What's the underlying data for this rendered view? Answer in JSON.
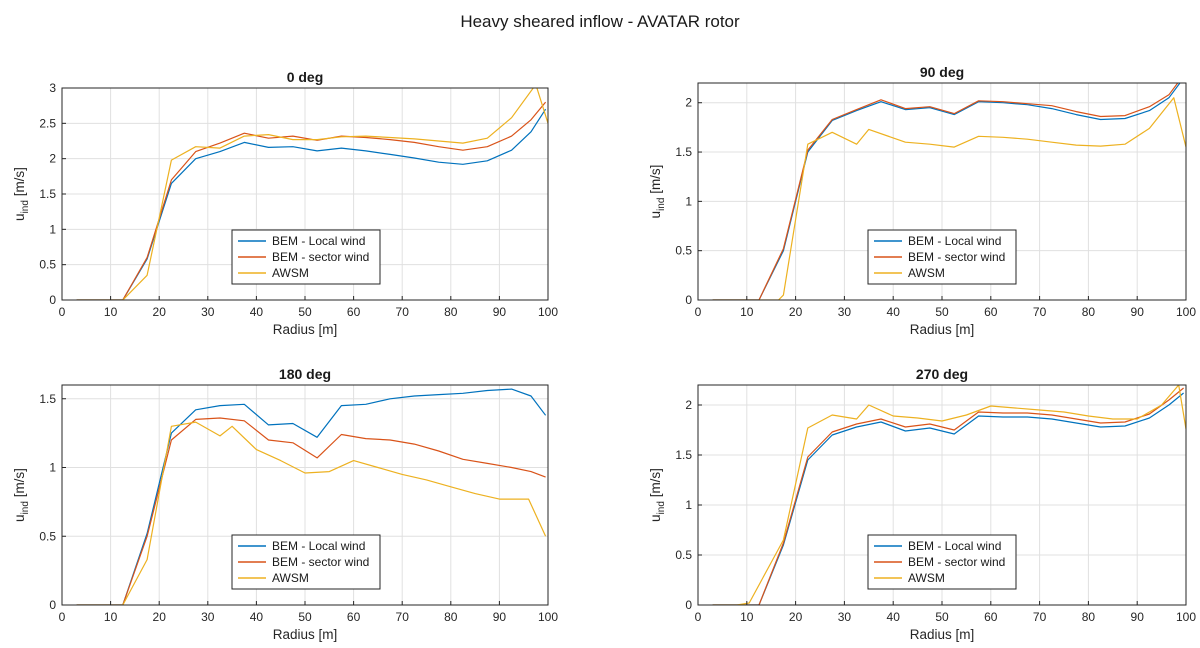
{
  "figure_title": "Heavy sheared inflow - AVATAR rotor",
  "colors": {
    "bem_local": "#0072BD",
    "bem_sector": "#D95319",
    "awsm": "#EDB120",
    "grid": "#e0e0e0",
    "axes": "#262626"
  },
  "chart_data": [
    {
      "type": "line",
      "title": "0 deg",
      "xlabel": "Radius [m]",
      "ylabel_main": "u",
      "ylabel_sub": "ind",
      "ylabel_unit": " [m/s]",
      "xlim": [
        0,
        100
      ],
      "ylim": [
        0,
        3
      ],
      "xticks": [
        0,
        10,
        20,
        30,
        40,
        50,
        60,
        70,
        80,
        90,
        100
      ],
      "yticks": [
        0,
        0.5,
        1,
        1.5,
        2,
        2.5,
        3
      ],
      "ytick_labels": [
        "0",
        "0.5",
        "1",
        "1.5",
        "2",
        "2.5",
        "3"
      ],
      "grid": true,
      "legend_position": "lower-middle",
      "series": [
        {
          "name": "BEM - Local wind",
          "color": "#0072BD",
          "x": [
            3,
            8,
            12.5,
            17.5,
            22.5,
            27.5,
            32.5,
            37.5,
            42.5,
            47.5,
            52.5,
            57.5,
            62.5,
            67.5,
            72.5,
            77.5,
            82.5,
            87.5,
            92.5,
            96.5,
            99.5
          ],
          "y": [
            0,
            0,
            0,
            0.58,
            1.65,
            2.0,
            2.1,
            2.23,
            2.16,
            2.17,
            2.11,
            2.15,
            2.11,
            2.06,
            2.01,
            1.95,
            1.92,
            1.97,
            2.12,
            2.38,
            2.7
          ]
        },
        {
          "name": "BEM - sector wind",
          "color": "#D95319",
          "x": [
            3,
            8,
            12.5,
            17.5,
            22.5,
            27.5,
            32.5,
            37.5,
            42.5,
            47.5,
            52.5,
            57.5,
            62.5,
            67.5,
            72.5,
            77.5,
            82.5,
            87.5,
            92.5,
            96.5,
            99.5
          ],
          "y": [
            0,
            0,
            0,
            0.6,
            1.7,
            2.1,
            2.22,
            2.36,
            2.29,
            2.32,
            2.26,
            2.32,
            2.3,
            2.27,
            2.23,
            2.17,
            2.12,
            2.17,
            2.32,
            2.55,
            2.8
          ]
        },
        {
          "name": "AWSM",
          "color": "#EDB120",
          "x": [
            3,
            8,
            12.5,
            17.5,
            22.5,
            27.5,
            32.5,
            37.5,
            42.5,
            47.5,
            52.5,
            57.5,
            62.5,
            67.5,
            72.5,
            77.5,
            82.5,
            87.5,
            92.5,
            97.5,
            100
          ],
          "y": [
            0,
            0,
            0,
            0.35,
            1.98,
            2.17,
            2.15,
            2.32,
            2.34,
            2.27,
            2.27,
            2.31,
            2.32,
            2.3,
            2.28,
            2.25,
            2.22,
            2.29,
            2.58,
            3.05,
            2.5
          ]
        }
      ]
    },
    {
      "type": "line",
      "title": "90 deg",
      "xlabel": "Radius [m]",
      "ylabel_main": "u",
      "ylabel_sub": "ind",
      "ylabel_unit": " [m/s]",
      "xlim": [
        0,
        100
      ],
      "ylim": [
        0,
        2.2
      ],
      "xticks": [
        0,
        10,
        20,
        30,
        40,
        50,
        60,
        70,
        80,
        90,
        100
      ],
      "yticks": [
        0,
        0.5,
        1,
        1.5,
        2
      ],
      "ytick_labels": [
        "0",
        "0.5",
        "1",
        "1.5",
        "2"
      ],
      "grid": true,
      "legend_position": "lower-middle",
      "series": [
        {
          "name": "BEM - Local wind",
          "color": "#0072BD",
          "x": [
            3,
            8,
            12.5,
            17.5,
            22.5,
            27.5,
            32.5,
            37.5,
            42.5,
            47.5,
            52.5,
            57.5,
            62.5,
            67.5,
            72.5,
            77.5,
            82.5,
            87.5,
            92.5,
            96.5,
            99.5
          ],
          "y": [
            0,
            0,
            0,
            0.5,
            1.5,
            1.82,
            1.92,
            2.01,
            1.93,
            1.95,
            1.88,
            2.01,
            2.0,
            1.98,
            1.94,
            1.88,
            1.83,
            1.84,
            1.92,
            2.05,
            2.25
          ]
        },
        {
          "name": "BEM - sector wind",
          "color": "#D95319",
          "x": [
            3,
            8,
            12.5,
            17.5,
            22.5,
            27.5,
            32.5,
            37.5,
            42.5,
            47.5,
            52.5,
            57.5,
            62.5,
            67.5,
            72.5,
            77.5,
            82.5,
            87.5,
            92.5,
            96.5,
            99.5
          ],
          "y": [
            0,
            0,
            0,
            0.52,
            1.52,
            1.83,
            1.93,
            2.03,
            1.94,
            1.96,
            1.89,
            2.02,
            2.01,
            1.99,
            1.97,
            1.91,
            1.86,
            1.87,
            1.96,
            2.08,
            2.28
          ]
        },
        {
          "name": "AWSM",
          "color": "#EDB120",
          "x": [
            3,
            8,
            12.5,
            16.5,
            17.5,
            22.5,
            27.5,
            32.5,
            35,
            42.5,
            47.5,
            52.5,
            57.5,
            62.5,
            67.5,
            72.5,
            77.5,
            82.5,
            87.5,
            92.5,
            97.5,
            100
          ],
          "y": [
            0,
            0,
            0,
            0,
            0.05,
            1.58,
            1.7,
            1.58,
            1.73,
            1.6,
            1.58,
            1.55,
            1.66,
            1.65,
            1.63,
            1.6,
            1.57,
            1.56,
            1.58,
            1.74,
            2.05,
            1.55
          ]
        }
      ]
    },
    {
      "type": "line",
      "title": "180 deg",
      "xlabel": "Radius [m]",
      "ylabel_main": "u",
      "ylabel_sub": "ind",
      "ylabel_unit": " [m/s]",
      "xlim": [
        0,
        100
      ],
      "ylim": [
        0,
        1.6
      ],
      "xticks": [
        0,
        10,
        20,
        30,
        40,
        50,
        60,
        70,
        80,
        90,
        100
      ],
      "yticks": [
        0,
        0.5,
        1,
        1.5
      ],
      "ytick_labels": [
        "0",
        "0.5",
        "1",
        "1.5"
      ],
      "grid": true,
      "legend_position": "lower-middle",
      "series": [
        {
          "name": "BEM - Local wind",
          "color": "#0072BD",
          "x": [
            3,
            8,
            12.5,
            17.5,
            22.5,
            27.5,
            32.5,
            37.5,
            42.5,
            47.5,
            52.5,
            57.5,
            62.5,
            67.5,
            72.5,
            77.5,
            82.5,
            87.5,
            92.5,
            96.5,
            99.5
          ],
          "y": [
            0,
            0,
            0,
            0.52,
            1.25,
            1.42,
            1.45,
            1.46,
            1.31,
            1.32,
            1.22,
            1.45,
            1.46,
            1.5,
            1.52,
            1.53,
            1.54,
            1.56,
            1.57,
            1.52,
            1.38
          ]
        },
        {
          "name": "BEM - sector wind",
          "color": "#D95319",
          "x": [
            3,
            8,
            12.5,
            17.5,
            22.5,
            27.5,
            32.5,
            37.5,
            42.5,
            47.5,
            52.5,
            57.5,
            62.5,
            67.5,
            72.5,
            77.5,
            82.5,
            87.5,
            92.5,
            96.5,
            99.5
          ],
          "y": [
            0,
            0,
            0,
            0.5,
            1.2,
            1.35,
            1.36,
            1.34,
            1.2,
            1.18,
            1.07,
            1.24,
            1.21,
            1.2,
            1.17,
            1.12,
            1.06,
            1.03,
            1.0,
            0.97,
            0.93
          ]
        },
        {
          "name": "AWSM",
          "color": "#EDB120",
          "x": [
            3,
            8,
            12.5,
            17.5,
            22.5,
            27.5,
            32.5,
            35,
            40,
            45,
            50,
            55,
            60,
            65,
            70,
            75,
            80,
            85,
            90,
            93,
            96,
            99.5
          ],
          "y": [
            0,
            0,
            0,
            0.33,
            1.3,
            1.33,
            1.23,
            1.3,
            1.13,
            1.05,
            0.96,
            0.97,
            1.05,
            1.0,
            0.95,
            0.91,
            0.86,
            0.81,
            0.77,
            0.77,
            0.77,
            0.5
          ]
        }
      ]
    },
    {
      "type": "line",
      "title": "270 deg",
      "xlabel": "Radius [m]",
      "ylabel_main": "u",
      "ylabel_sub": "ind",
      "ylabel_unit": " [m/s]",
      "xlim": [
        0,
        100
      ],
      "ylim": [
        0,
        2.2
      ],
      "xticks": [
        0,
        10,
        20,
        30,
        40,
        50,
        60,
        70,
        80,
        90,
        100
      ],
      "yticks": [
        0,
        0.5,
        1,
        1.5,
        2
      ],
      "ytick_labels": [
        "0",
        "0.5",
        "1",
        "1.5",
        "2"
      ],
      "grid": true,
      "legend_position": "lower-middle",
      "series": [
        {
          "name": "BEM - Local wind",
          "color": "#0072BD",
          "x": [
            3,
            8,
            12.5,
            17.5,
            22.5,
            27.5,
            32.5,
            37.5,
            42.5,
            47.5,
            52.5,
            57.5,
            62.5,
            67.5,
            72.5,
            77.5,
            82.5,
            87.5,
            92.5,
            96.5,
            99.5
          ],
          "y": [
            0,
            0,
            0,
            0.6,
            1.45,
            1.7,
            1.78,
            1.83,
            1.74,
            1.77,
            1.71,
            1.89,
            1.88,
            1.88,
            1.86,
            1.82,
            1.78,
            1.79,
            1.87,
            2.0,
            2.12
          ]
        },
        {
          "name": "BEM - sector wind",
          "color": "#D95319",
          "x": [
            3,
            8,
            12.5,
            17.5,
            22.5,
            27.5,
            32.5,
            37.5,
            42.5,
            47.5,
            52.5,
            57.5,
            62.5,
            67.5,
            72.5,
            77.5,
            82.5,
            87.5,
            92.5,
            96.5,
            99.5
          ],
          "y": [
            0,
            0,
            0,
            0.62,
            1.48,
            1.73,
            1.81,
            1.86,
            1.78,
            1.81,
            1.75,
            1.93,
            1.92,
            1.92,
            1.9,
            1.86,
            1.82,
            1.83,
            1.91,
            2.05,
            2.17
          ]
        },
        {
          "name": "AWSM",
          "color": "#EDB120",
          "x": [
            3,
            8,
            10.5,
            17.5,
            22.5,
            27.5,
            32.5,
            35,
            40,
            45,
            50,
            55,
            60,
            65,
            70,
            75,
            80,
            85,
            90,
            95,
            98.5,
            100
          ],
          "y": [
            0,
            0,
            0.02,
            0.65,
            1.77,
            1.9,
            1.86,
            2.0,
            1.89,
            1.87,
            1.84,
            1.9,
            1.99,
            1.97,
            1.95,
            1.93,
            1.89,
            1.86,
            1.86,
            2.0,
            2.2,
            1.76
          ]
        }
      ]
    }
  ]
}
